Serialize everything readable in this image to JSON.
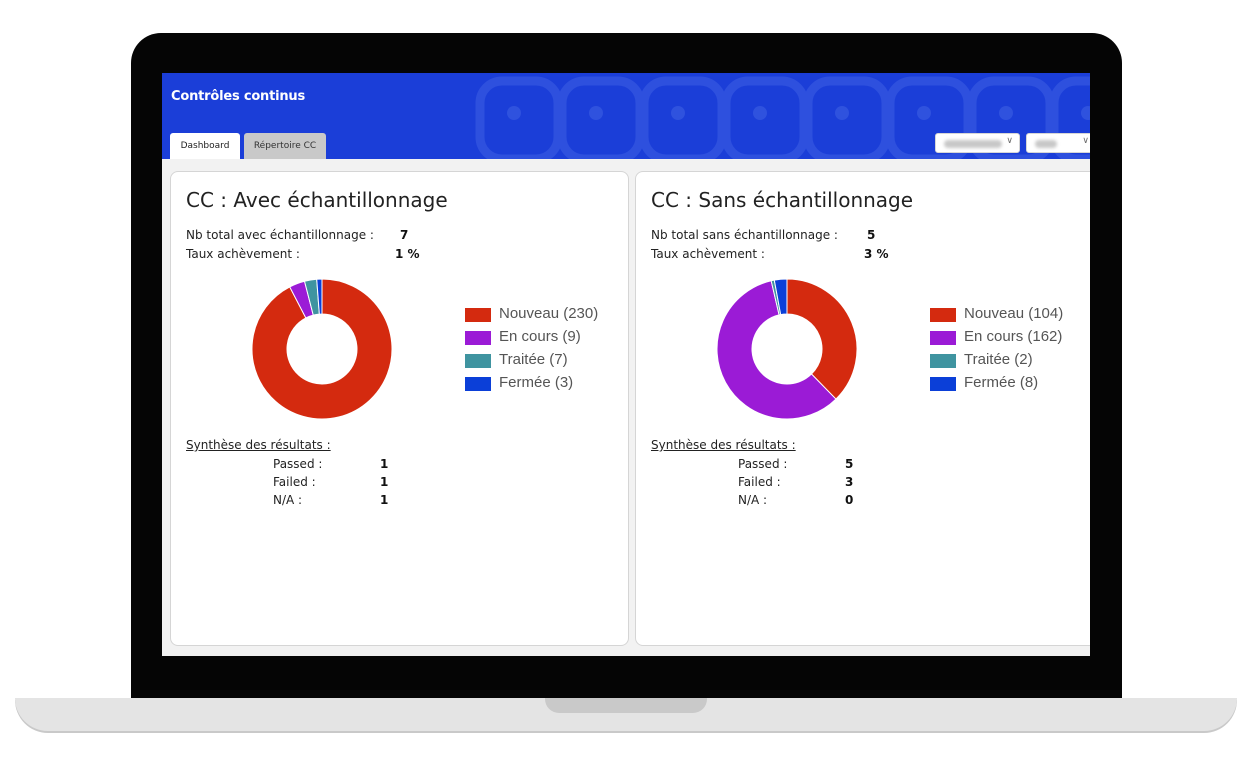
{
  "app": {
    "title": "Contrôles continus"
  },
  "tabs": [
    {
      "label": "Dashboard",
      "active": true
    },
    {
      "label": "Répertoire CC",
      "active": false
    }
  ],
  "filters": [
    {
      "selected": "",
      "blurred": true
    },
    {
      "selected": "",
      "blurred": true
    }
  ],
  "colors": {
    "header": "#1b3ed8",
    "nouveau": "#d42a0f",
    "en_cours": "#9b1bd6",
    "traitee": "#3f94a0",
    "fermee": "#0b3fd8"
  },
  "panels": [
    {
      "title": "CC : Avec échantillonnage",
      "total_label": "Nb total avec échantillonnage :",
      "total_value": "7",
      "rate_label": "Taux achèvement :",
      "rate_value": "1 %",
      "legend": [
        {
          "label": "Nouveau (230)",
          "value": 230,
          "color": "#d42a0f"
        },
        {
          "label": "En cours (9)",
          "value": 9,
          "color": "#9b1bd6"
        },
        {
          "label": "Traitée (7)",
          "value": 7,
          "color": "#3f94a0"
        },
        {
          "label": "Fermée (3)",
          "value": 3,
          "color": "#0b3fd8"
        }
      ],
      "synthesis_title": "Synthèse des résultats :",
      "results": [
        {
          "label": "Passed :",
          "value": "1"
        },
        {
          "label": "Failed :",
          "value": "1"
        },
        {
          "label": "N/A :",
          "value": "1"
        }
      ]
    },
    {
      "title": "CC : Sans échantillonnage",
      "total_label": "Nb total sans échantillonnage :",
      "total_value": "5",
      "rate_label": "Taux achèvement :",
      "rate_value": "3 %",
      "legend": [
        {
          "label": "Nouveau (104)",
          "value": 104,
          "color": "#d42a0f"
        },
        {
          "label": "En cours (162)",
          "value": 162,
          "color": "#9b1bd6"
        },
        {
          "label": "Traitée (2)",
          "value": 2,
          "color": "#3f94a0"
        },
        {
          "label": "Fermée (8)",
          "value": 8,
          "color": "#0b3fd8"
        }
      ],
      "synthesis_title": "Synthèse des résultats :",
      "results": [
        {
          "label": "Passed :",
          "value": "5"
        },
        {
          "label": "Failed :",
          "value": "3"
        },
        {
          "label": "N/A :",
          "value": "0"
        }
      ]
    }
  ]
}
